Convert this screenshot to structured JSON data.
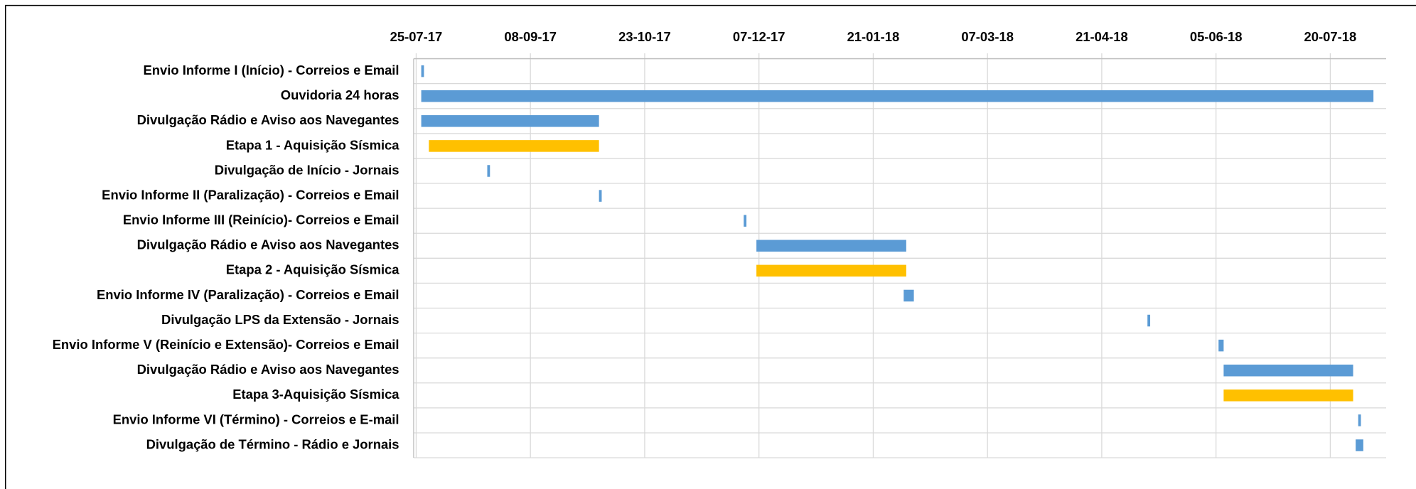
{
  "chart_data": {
    "type": "gantt",
    "tasks": [
      {
        "name": "Envio Informe I (Início) - Correios e Email",
        "start": "2017-07-27",
        "end": "2017-07-27",
        "color": "#5b9bd5"
      },
      {
        "name": "Ouvidoria 24 horas",
        "start": "2017-07-27",
        "end": "2018-08-06",
        "color": "#5b9bd5"
      },
      {
        "name": "Divulgação Rádio e Aviso aos Navegantes",
        "start": "2017-07-27",
        "end": "2017-10-05",
        "color": "#5b9bd5"
      },
      {
        "name": "Etapa 1 - Aquisição Sísmica",
        "start": "2017-07-30",
        "end": "2017-10-05",
        "color": "#ffc000"
      },
      {
        "name": "Divulgação de Início - Jornais",
        "start": "2017-08-22",
        "end": "2017-08-22",
        "color": "#5b9bd5"
      },
      {
        "name": "Envio Informe II (Paralização) - Correios e Email",
        "start": "2017-10-05",
        "end": "2017-10-05",
        "color": "#5b9bd5"
      },
      {
        "name": "Envio Informe III (Reinício)- Correios e Email",
        "start": "2017-12-01",
        "end": "2017-12-01",
        "color": "#5b9bd5"
      },
      {
        "name": "Divulgação Rádio e Aviso aos Navegantes",
        "start": "2017-12-06",
        "end": "2018-02-03",
        "color": "#5b9bd5"
      },
      {
        "name": "Etapa 2 - Aquisição Sísmica",
        "start": "2017-12-06",
        "end": "2018-02-03",
        "color": "#ffc000"
      },
      {
        "name": "Envio Informe IV (Paralização) - Correios e Email",
        "start": "2018-02-02",
        "end": "2018-02-06",
        "color": "#5b9bd5"
      },
      {
        "name": "Divulgação LPS da Extensão - Jornais",
        "start": "2018-05-09",
        "end": "2018-05-09",
        "color": "#5b9bd5"
      },
      {
        "name": "Envio Informe V (Reinício e Extensão)- Correios e Email",
        "start": "2018-06-06",
        "end": "2018-06-08",
        "color": "#5b9bd5"
      },
      {
        "name": "Divulgação Rádio e Aviso aos Navegantes",
        "start": "2018-06-08",
        "end": "2018-07-29",
        "color": "#5b9bd5"
      },
      {
        "name": "Etapa 3-Aquisição Sísmica",
        "start": "2018-06-08",
        "end": "2018-07-29",
        "color": "#ffc000"
      },
      {
        "name": "Envio Informe VI (Término) - Correios e E-mail",
        "start": "2018-07-31",
        "end": "2018-07-31",
        "color": "#5b9bd5"
      },
      {
        "name": "Divulgação de Término - Rádio e Jornais",
        "start": "2018-07-30",
        "end": "2018-08-02",
        "color": "#5b9bd5"
      }
    ],
    "xlim": [
      "2017-07-24",
      "2018-08-11"
    ],
    "xticks": [
      {
        "value": "2017-07-25",
        "label": "25-07-17"
      },
      {
        "value": "2017-09-08",
        "label": "08-09-17"
      },
      {
        "value": "2017-10-23",
        "label": "23-10-17"
      },
      {
        "value": "2017-12-07",
        "label": "07-12-17"
      },
      {
        "value": "2018-01-21",
        "label": "21-01-18"
      },
      {
        "value": "2018-03-07",
        "label": "07-03-18"
      },
      {
        "value": "2018-04-21",
        "label": "21-04-18"
      },
      {
        "value": "2018-06-05",
        "label": "05-06-18"
      },
      {
        "value": "2018-07-20",
        "label": "20-07-18"
      }
    ],
    "grid": true
  }
}
